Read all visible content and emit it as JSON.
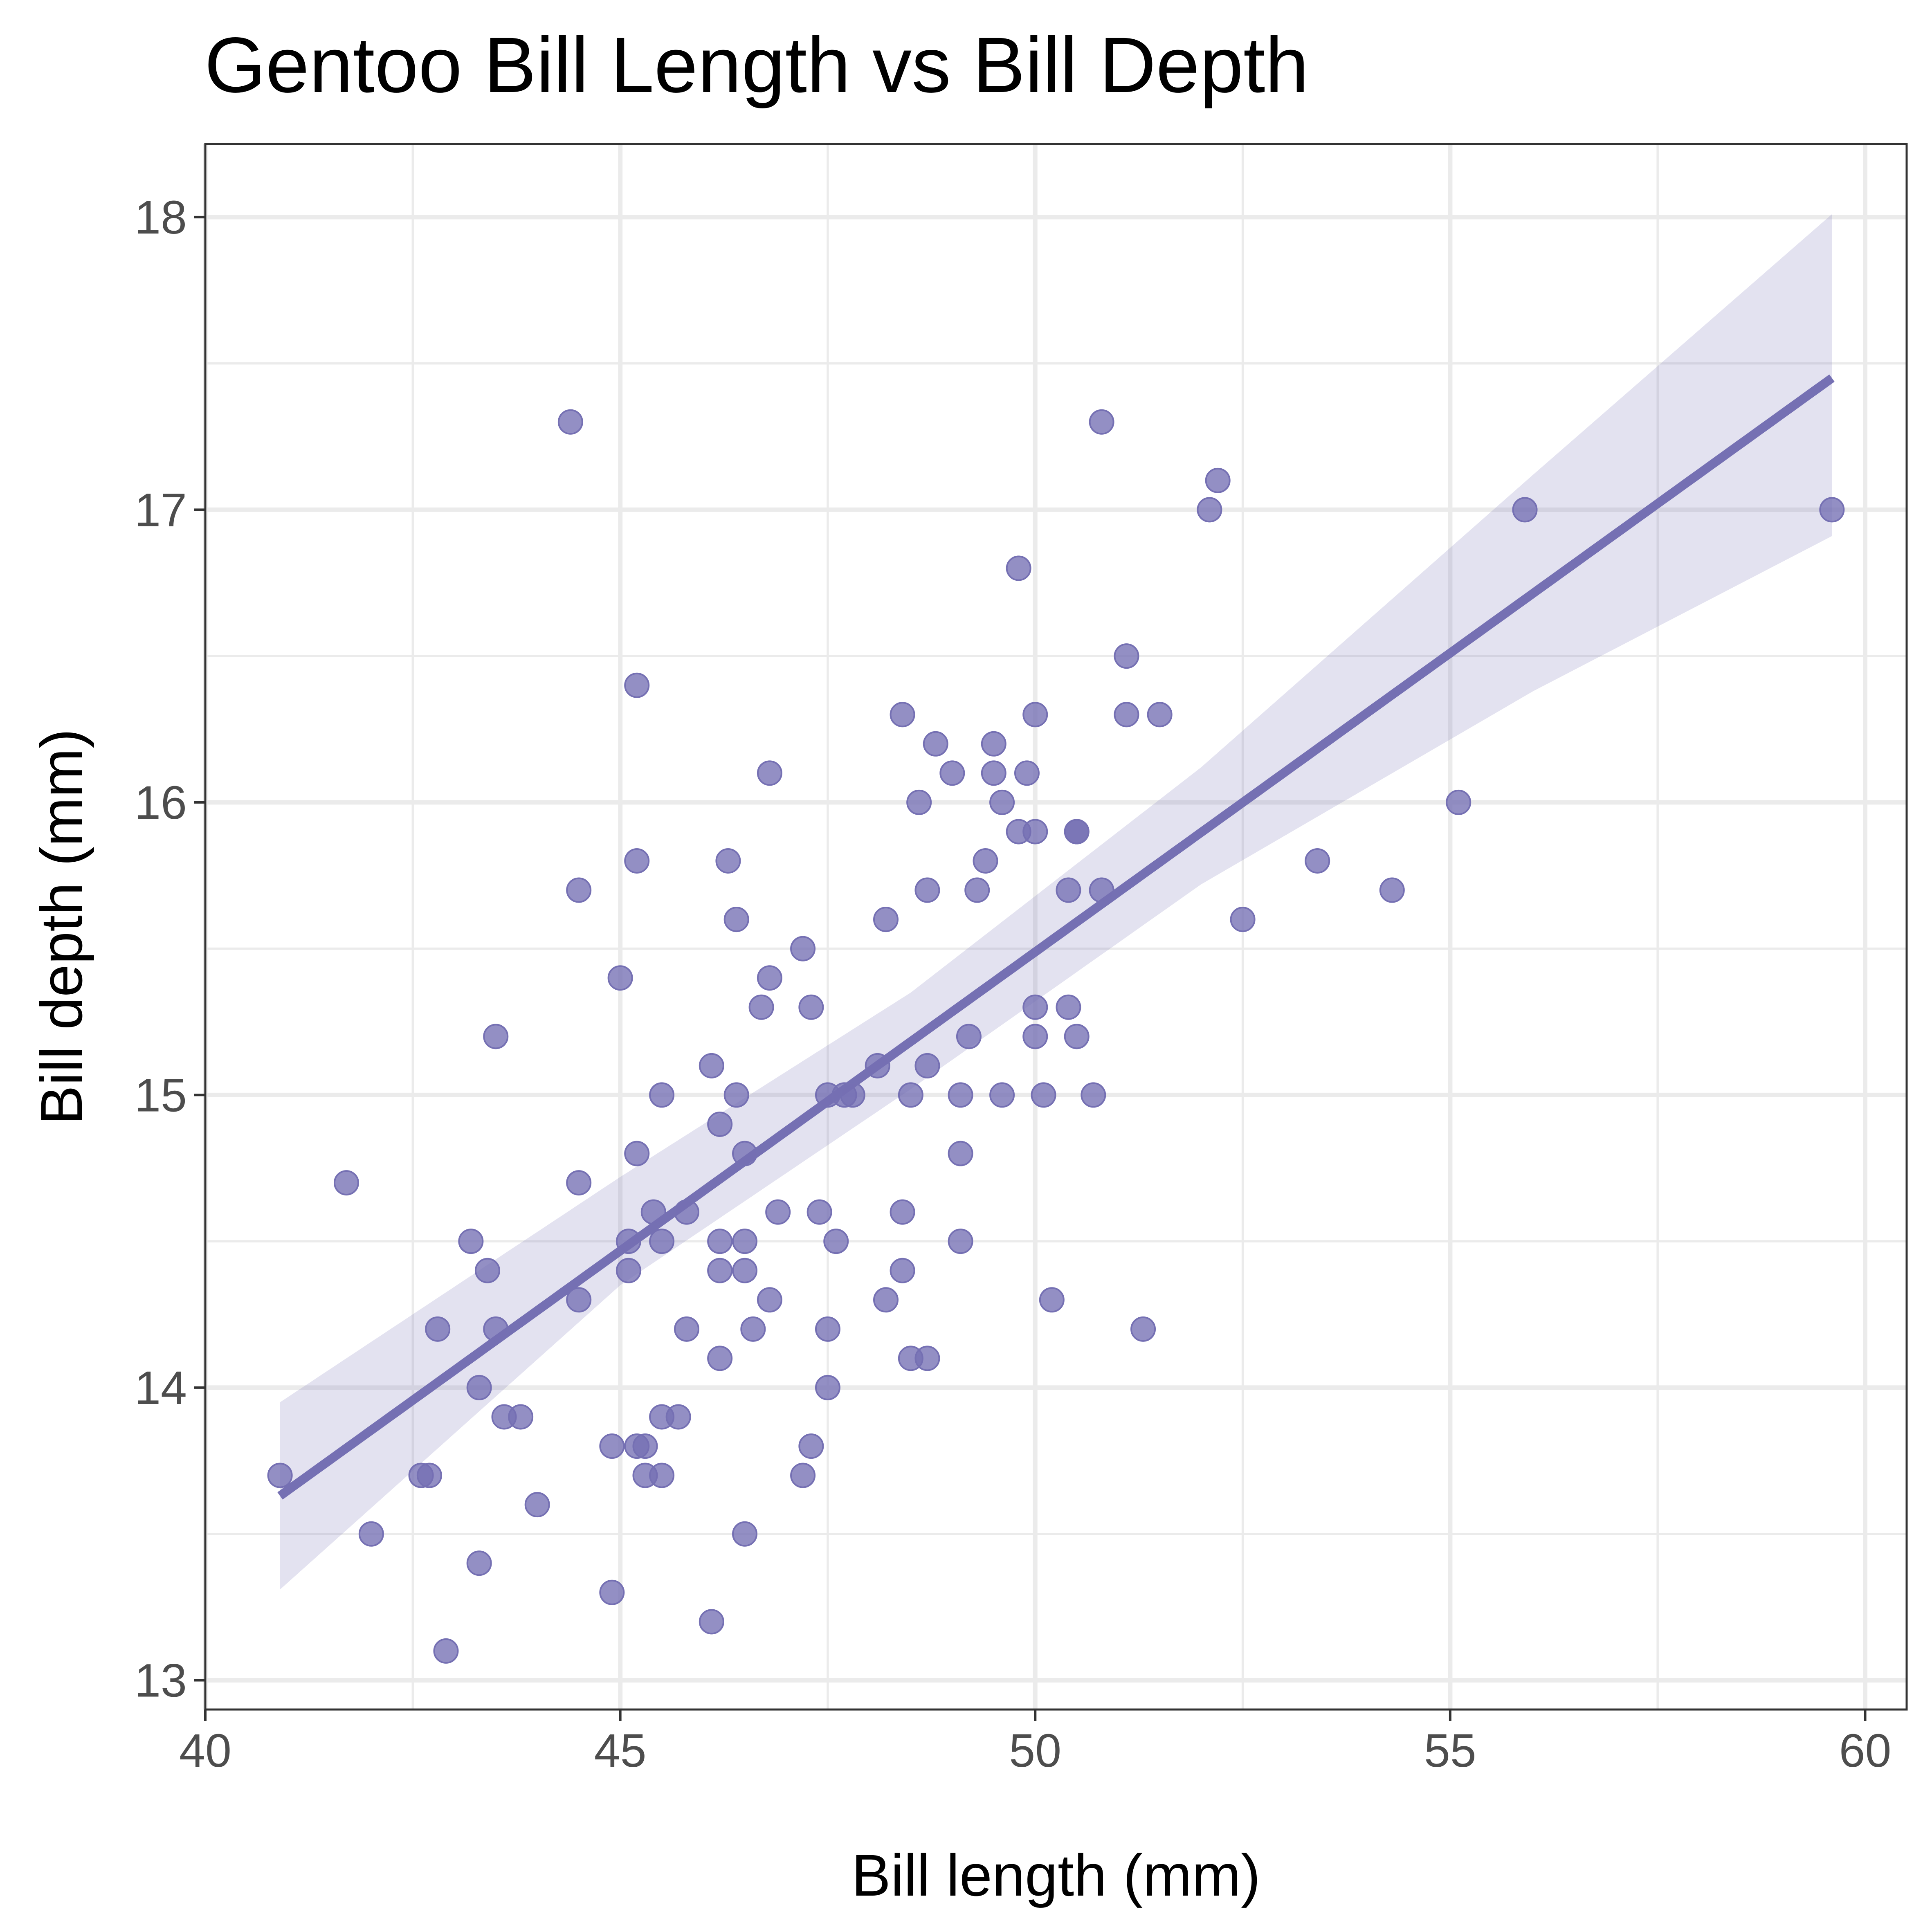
{
  "chart_data": {
    "type": "scatter",
    "title": "Gentoo Bill Length vs Bill Depth",
    "xlabel": "Bill length (mm)",
    "ylabel": "Bill depth (mm)",
    "xlim": [
      40,
      60.5
    ],
    "ylim": [
      12.9,
      18.25
    ],
    "x_ticks": [
      40,
      45,
      50,
      55,
      60
    ],
    "y_ticks": [
      13,
      14,
      15,
      16,
      17,
      18
    ],
    "x_tick_labels": [
      "40",
      "45",
      "50",
      "55",
      "60"
    ],
    "y_tick_labels": [
      "13",
      "14",
      "15",
      "16",
      "17",
      "18"
    ],
    "grid": true,
    "colors": {
      "point": "#7570b3",
      "line": "#7570b3",
      "ribbon": "#7570b3"
    },
    "points": [
      {
        "x": 40.9,
        "y": 13.7
      },
      {
        "x": 41.7,
        "y": 14.7
      },
      {
        "x": 42.0,
        "y": 13.5
      },
      {
        "x": 42.6,
        "y": 13.7
      },
      {
        "x": 42.7,
        "y": 13.7
      },
      {
        "x": 42.8,
        "y": 14.2
      },
      {
        "x": 42.9,
        "y": 13.1
      },
      {
        "x": 43.2,
        "y": 14.5
      },
      {
        "x": 43.3,
        "y": 14.0
      },
      {
        "x": 43.3,
        "y": 13.4
      },
      {
        "x": 43.4,
        "y": 14.4
      },
      {
        "x": 43.5,
        "y": 15.2
      },
      {
        "x": 43.5,
        "y": 14.2
      },
      {
        "x": 43.6,
        "y": 13.9
      },
      {
        "x": 43.8,
        "y": 13.9
      },
      {
        "x": 44.0,
        "y": 13.6
      },
      {
        "x": 44.4,
        "y": 17.3
      },
      {
        "x": 44.5,
        "y": 15.7
      },
      {
        "x": 44.5,
        "y": 14.7
      },
      {
        "x": 44.5,
        "y": 14.3
      },
      {
        "x": 44.9,
        "y": 13.8
      },
      {
        "x": 44.9,
        "y": 13.3
      },
      {
        "x": 45.0,
        "y": 15.4
      },
      {
        "x": 45.1,
        "y": 14.5
      },
      {
        "x": 45.1,
        "y": 14.4
      },
      {
        "x": 45.2,
        "y": 16.4
      },
      {
        "x": 45.2,
        "y": 15.8
      },
      {
        "x": 45.2,
        "y": 14.8
      },
      {
        "x": 45.2,
        "y": 13.8
      },
      {
        "x": 45.3,
        "y": 13.8
      },
      {
        "x": 45.3,
        "y": 13.7
      },
      {
        "x": 45.4,
        "y": 14.6
      },
      {
        "x": 45.5,
        "y": 15.0
      },
      {
        "x": 45.5,
        "y": 14.5
      },
      {
        "x": 45.5,
        "y": 13.9
      },
      {
        "x": 45.5,
        "y": 13.7
      },
      {
        "x": 45.7,
        "y": 13.9
      },
      {
        "x": 45.8,
        "y": 14.6
      },
      {
        "x": 45.8,
        "y": 14.2
      },
      {
        "x": 46.1,
        "y": 15.1
      },
      {
        "x": 46.1,
        "y": 13.2
      },
      {
        "x": 46.2,
        "y": 14.9
      },
      {
        "x": 46.2,
        "y": 14.5
      },
      {
        "x": 46.2,
        "y": 14.4
      },
      {
        "x": 46.2,
        "y": 14.1
      },
      {
        "x": 46.3,
        "y": 15.8
      },
      {
        "x": 46.4,
        "y": 15.6
      },
      {
        "x": 46.4,
        "y": 15.0
      },
      {
        "x": 46.5,
        "y": 14.8
      },
      {
        "x": 46.5,
        "y": 14.5
      },
      {
        "x": 46.5,
        "y": 14.4
      },
      {
        "x": 46.5,
        "y": 13.5
      },
      {
        "x": 46.6,
        "y": 14.2
      },
      {
        "x": 46.7,
        "y": 15.3
      },
      {
        "x": 46.8,
        "y": 16.1
      },
      {
        "x": 46.8,
        "y": 15.4
      },
      {
        "x": 46.8,
        "y": 14.3
      },
      {
        "x": 46.9,
        "y": 14.6
      },
      {
        "x": 47.2,
        "y": 15.5
      },
      {
        "x": 47.2,
        "y": 13.7
      },
      {
        "x": 47.3,
        "y": 15.3
      },
      {
        "x": 47.3,
        "y": 13.8
      },
      {
        "x": 47.4,
        "y": 14.6
      },
      {
        "x": 47.5,
        "y": 15.0
      },
      {
        "x": 47.5,
        "y": 14.2
      },
      {
        "x": 47.5,
        "y": 14.0
      },
      {
        "x": 47.6,
        "y": 14.5
      },
      {
        "x": 47.7,
        "y": 15.0
      },
      {
        "x": 47.8,
        "y": 15.0
      },
      {
        "x": 48.1,
        "y": 15.1
      },
      {
        "x": 48.2,
        "y": 15.6
      },
      {
        "x": 48.2,
        "y": 14.3
      },
      {
        "x": 48.4,
        "y": 16.3
      },
      {
        "x": 48.4,
        "y": 14.6
      },
      {
        "x": 48.4,
        "y": 14.4
      },
      {
        "x": 48.5,
        "y": 15.0
      },
      {
        "x": 48.5,
        "y": 14.1
      },
      {
        "x": 48.6,
        "y": 16.0
      },
      {
        "x": 48.7,
        "y": 15.7
      },
      {
        "x": 48.7,
        "y": 15.1
      },
      {
        "x": 48.7,
        "y": 14.1
      },
      {
        "x": 48.8,
        "y": 16.2
      },
      {
        "x": 49.0,
        "y": 16.1
      },
      {
        "x": 49.1,
        "y": 15.0
      },
      {
        "x": 49.1,
        "y": 14.8
      },
      {
        "x": 49.1,
        "y": 14.5
      },
      {
        "x": 49.2,
        "y": 15.2
      },
      {
        "x": 49.3,
        "y": 15.7
      },
      {
        "x": 49.4,
        "y": 15.8
      },
      {
        "x": 49.5,
        "y": 16.2
      },
      {
        "x": 49.5,
        "y": 16.1
      },
      {
        "x": 49.6,
        "y": 16.0
      },
      {
        "x": 49.6,
        "y": 15.0
      },
      {
        "x": 49.8,
        "y": 16.8
      },
      {
        "x": 49.8,
        "y": 15.9
      },
      {
        "x": 49.9,
        "y": 16.1
      },
      {
        "x": 50.0,
        "y": 16.3
      },
      {
        "x": 50.0,
        "y": 15.9
      },
      {
        "x": 50.0,
        "y": 15.3
      },
      {
        "x": 50.0,
        "y": 15.2
      },
      {
        "x": 50.1,
        "y": 15.0
      },
      {
        "x": 50.2,
        "y": 14.3
      },
      {
        "x": 50.4,
        "y": 15.7
      },
      {
        "x": 50.4,
        "y": 15.3
      },
      {
        "x": 50.5,
        "y": 15.9
      },
      {
        "x": 50.5,
        "y": 15.9
      },
      {
        "x": 50.5,
        "y": 15.2
      },
      {
        "x": 50.7,
        "y": 15.0
      },
      {
        "x": 50.8,
        "y": 17.3
      },
      {
        "x": 50.8,
        "y": 15.7
      },
      {
        "x": 51.1,
        "y": 16.5
      },
      {
        "x": 51.1,
        "y": 16.3
      },
      {
        "x": 51.3,
        "y": 14.2
      },
      {
        "x": 51.5,
        "y": 16.3
      },
      {
        "x": 52.1,
        "y": 17.0
      },
      {
        "x": 52.2,
        "y": 17.1
      },
      {
        "x": 52.5,
        "y": 15.6
      },
      {
        "x": 53.4,
        "y": 15.8
      },
      {
        "x": 54.3,
        "y": 15.7
      },
      {
        "x": 55.1,
        "y": 16.0
      },
      {
        "x": 55.9,
        "y": 17.0
      },
      {
        "x": 59.6,
        "y": 17.0
      }
    ],
    "fit_line": [
      {
        "x": 40.9,
        "y": 13.63
      },
      {
        "x": 59.6,
        "y": 17.45
      }
    ],
    "confidence_band": [
      {
        "x": 40.9,
        "lower": 13.31,
        "upper": 13.95
      },
      {
        "x": 45.0,
        "lower": 14.35,
        "upper": 14.72
      },
      {
        "x": 48.5,
        "lower": 15.02,
        "upper": 15.35
      },
      {
        "x": 52.0,
        "lower": 15.72,
        "upper": 16.12
      },
      {
        "x": 56.0,
        "lower": 16.38,
        "upper": 17.12
      },
      {
        "x": 59.6,
        "lower": 16.91,
        "upper": 18.01
      }
    ]
  }
}
